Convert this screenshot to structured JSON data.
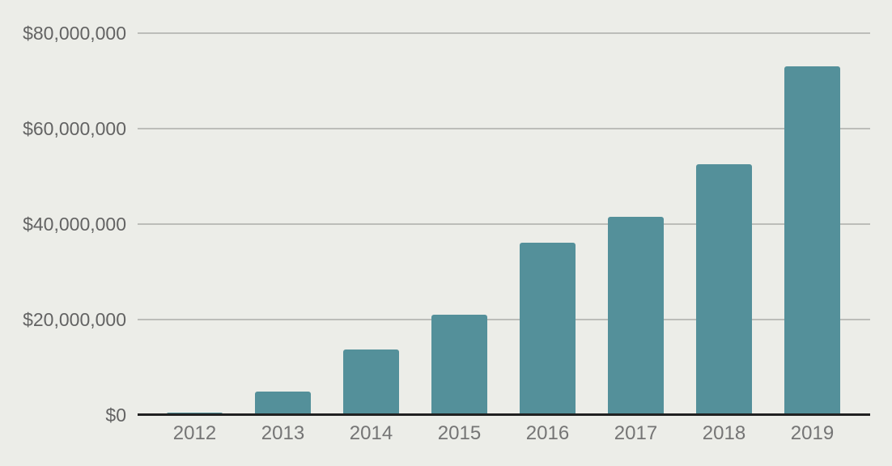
{
  "chart_data": {
    "type": "bar",
    "title": "",
    "xlabel": "",
    "ylabel": "",
    "categories": [
      "2012",
      "2013",
      "2014",
      "2015",
      "2016",
      "2017",
      "2018",
      "2019"
    ],
    "values": [
      500000,
      4800000,
      13700000,
      21000000,
      36000000,
      41400000,
      52400000,
      73000000
    ],
    "ylim": [
      0,
      80000000
    ],
    "yticks": [
      {
        "value": 0,
        "label": "$0"
      },
      {
        "value": 20000000,
        "label": "$20,000,000"
      },
      {
        "value": 40000000,
        "label": "$40,000,000"
      },
      {
        "value": 60000000,
        "label": "$60,000,000"
      },
      {
        "value": 80000000,
        "label": "$80,000,000"
      }
    ],
    "grid": true,
    "legend": false,
    "colors": {
      "background": "#ECEDE8",
      "bar": "#54909A",
      "gridline": "#BCBDB9",
      "axis_line": "#212121",
      "y_label_text": "#636363",
      "x_label_text": "#757575"
    }
  }
}
